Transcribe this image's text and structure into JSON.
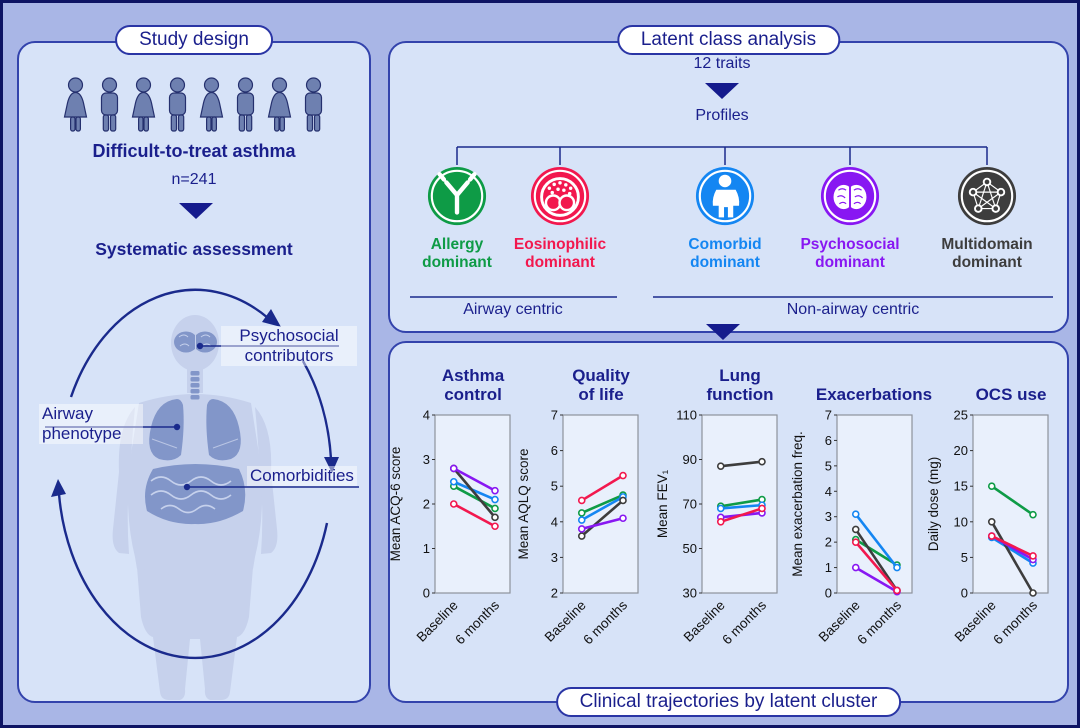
{
  "colors": {
    "navy": "#1a1f8c",
    "panel_fill": "#d7e3f8",
    "background": "#a9b6e6",
    "allergy_green": "#0e9b46",
    "eosinophilic_red": "#f2184e",
    "comorbid_blue": "#1486f2",
    "psychosocial_purple": "#8817f2",
    "multidomain_gray": "#3d3d3d"
  },
  "figure": {
    "study_design": {
      "title": "Study design",
      "people": [
        "female",
        "male",
        "female",
        "male",
        "female",
        "male",
        "female",
        "male"
      ],
      "population_label": "Difficult-to-treat asthma",
      "sample_size": "n=241",
      "assessment_label": "Systematic assessment",
      "body_labels": {
        "psychosocial": "Psychosocial\ncontributors",
        "airway": "Airway\nphenotype",
        "comorbidities": "Comorbidities"
      }
    },
    "latent_class": {
      "title": "Latent class analysis",
      "traits_label": "12 traits",
      "profiles_label": "Profiles",
      "profiles": [
        {
          "name": "Allergy\ndominant",
          "color": "#0e9b46",
          "icon": "antibody"
        },
        {
          "name": "Eosinophilic\ndominant",
          "color": "#f2184e",
          "icon": "eosinophil"
        },
        {
          "name": "Comorbid\ndominant",
          "color": "#1486f2",
          "icon": "person"
        },
        {
          "name": "Psychosocial\ndominant",
          "color": "#8817f2",
          "icon": "brain"
        },
        {
          "name": "Multidomain\ndominant",
          "color": "#3d3d3d",
          "icon": "network"
        }
      ],
      "groups": [
        {
          "label": "Airway centric"
        },
        {
          "label": "Non-airway centric"
        }
      ]
    },
    "trajectories_title": "Clinical trajectories by latent cluster"
  },
  "chart_data": [
    {
      "type": "line",
      "title": "Asthma\ncontrol",
      "ylabel": "Mean ACQ-6 score",
      "ylim": [
        0,
        4
      ],
      "yticks": [
        0,
        1,
        2,
        3,
        4
      ],
      "x_labels": [
        "Baseline",
        "6 months"
      ],
      "series": [
        {
          "name": "Allergy dominant",
          "color": "#0e9b46",
          "values": [
            2.4,
            1.9
          ]
        },
        {
          "name": "Comorbid dominant",
          "color": "#1486f2",
          "values": [
            2.5,
            2.1
          ]
        },
        {
          "name": "Multidomain dominant",
          "color": "#3d3d3d",
          "values": [
            2.8,
            1.7
          ]
        },
        {
          "name": "Psychosocial dominant",
          "color": "#8817f2",
          "values": [
            2.8,
            2.3
          ]
        },
        {
          "name": "Eosinophilic dominant",
          "color": "#f2184e",
          "values": [
            2.0,
            1.5
          ]
        }
      ]
    },
    {
      "type": "line",
      "title": "Quality\nof life",
      "ylabel": "Mean AQLQ score",
      "ylim": [
        2,
        7
      ],
      "yticks": [
        2,
        3,
        4,
        5,
        6,
        7
      ],
      "x_labels": [
        "Baseline",
        "6 months"
      ],
      "series": [
        {
          "name": "Allergy dominant",
          "color": "#0e9b46",
          "values": [
            4.25,
            4.75
          ]
        },
        {
          "name": "Comorbid dominant",
          "color": "#1486f2",
          "values": [
            4.05,
            4.7
          ]
        },
        {
          "name": "Multidomain dominant",
          "color": "#3d3d3d",
          "values": [
            3.6,
            4.6
          ]
        },
        {
          "name": "Psychosocial dominant",
          "color": "#8817f2",
          "values": [
            3.8,
            4.1
          ]
        },
        {
          "name": "Eosinophilic dominant",
          "color": "#f2184e",
          "values": [
            4.6,
            5.3
          ]
        }
      ]
    },
    {
      "type": "line",
      "title": "Lung\nfunction",
      "ylabel": "Mean FEV₁",
      "ylim": [
        30,
        110
      ],
      "yticks": [
        30,
        50,
        70,
        90,
        110
      ],
      "x_labels": [
        "Baseline",
        "6 months"
      ],
      "series": [
        {
          "name": "Allergy dominant",
          "color": "#0e9b46",
          "values": [
            69,
            72
          ]
        },
        {
          "name": "Comorbid dominant",
          "color": "#1486f2",
          "values": [
            68,
            69.5
          ]
        },
        {
          "name": "Multidomain dominant",
          "color": "#3d3d3d",
          "values": [
            87,
            89
          ]
        },
        {
          "name": "Psychosocial dominant",
          "color": "#8817f2",
          "values": [
            64,
            66
          ]
        },
        {
          "name": "Eosinophilic dominant",
          "color": "#f2184e",
          "values": [
            62,
            68
          ]
        }
      ]
    },
    {
      "type": "line",
      "title": "Exacerbations",
      "ylabel": "Mean exacerbation freq.",
      "ylim": [
        0,
        7
      ],
      "yticks": [
        0,
        1,
        2,
        3,
        4,
        5,
        6,
        7
      ],
      "x_labels": [
        "Baseline",
        "6 months"
      ],
      "series": [
        {
          "name": "Allergy dominant",
          "color": "#0e9b46",
          "values": [
            2.1,
            1.1
          ]
        },
        {
          "name": "Comorbid dominant",
          "color": "#1486f2",
          "values": [
            3.1,
            1.0
          ]
        },
        {
          "name": "Multidomain dominant",
          "color": "#3d3d3d",
          "values": [
            2.5,
            0.1
          ]
        },
        {
          "name": "Psychosocial dominant",
          "color": "#8817f2",
          "values": [
            1.0,
            0.05
          ]
        },
        {
          "name": "Eosinophilic dominant",
          "color": "#f2184e",
          "values": [
            2.0,
            0.1
          ]
        }
      ]
    },
    {
      "type": "line",
      "title": "OCS use",
      "ylabel": "Daily dose (mg)",
      "ylim": [
        0,
        25
      ],
      "yticks": [
        0,
        5,
        10,
        15,
        20,
        25
      ],
      "x_labels": [
        "Baseline",
        "6 months"
      ],
      "series": [
        {
          "name": "Allergy dominant",
          "color": "#0e9b46",
          "values": [
            15,
            11
          ]
        },
        {
          "name": "Comorbid dominant",
          "color": "#1486f2",
          "values": [
            7.8,
            4.2
          ]
        },
        {
          "name": "Multidomain dominant",
          "color": "#3d3d3d",
          "values": [
            10,
            0
          ]
        },
        {
          "name": "Psychosocial dominant",
          "color": "#8817f2",
          "values": [
            8,
            4.7
          ]
        },
        {
          "name": "Eosinophilic dominant",
          "color": "#f2184e",
          "values": [
            8,
            5.2
          ]
        }
      ]
    }
  ]
}
